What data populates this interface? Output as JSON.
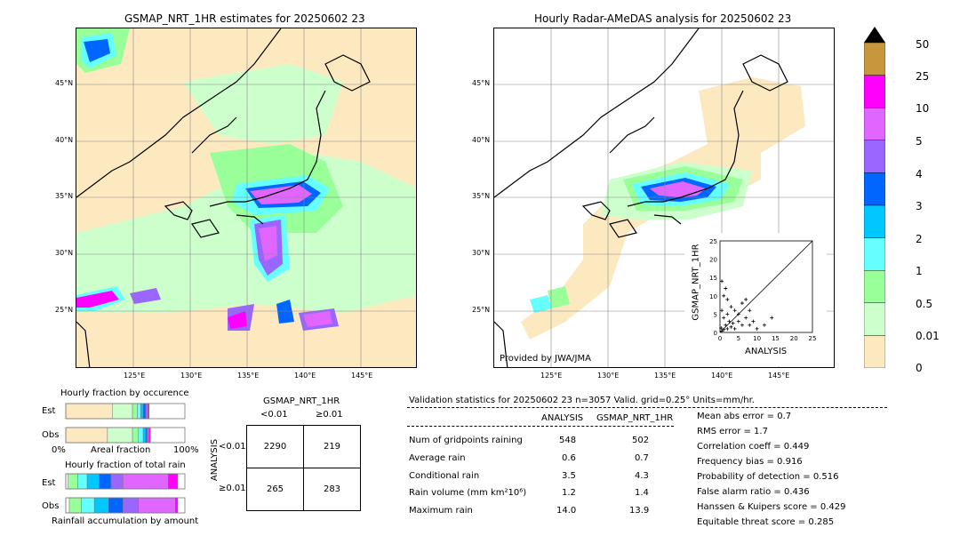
{
  "left_map": {
    "title": "GSMAP_NRT_1HR estimates for 20250602 23",
    "lat_labels": [
      "45°N",
      "40°N",
      "35°N",
      "30°N",
      "25°N"
    ],
    "lon_labels": [
      "125°E",
      "130°E",
      "135°E",
      "140°E",
      "145°E"
    ]
  },
  "right_map": {
    "title": "Hourly Radar-AMeDAS analysis for 20250602 23",
    "lat_labels": [
      "45°N",
      "40°N",
      "35°N",
      "30°N",
      "25°N"
    ],
    "lon_labels": [
      "125°E",
      "130°E",
      "135°E",
      "140°E",
      "145°E"
    ],
    "credit": "Provided by JWA/JMA"
  },
  "scatter": {
    "ylabel": "GSMAP_NRT_1HR",
    "xlabel": "ANALYSIS",
    "ticks": [
      "0",
      "5",
      "10",
      "15",
      "20",
      "25"
    ]
  },
  "colorbar": {
    "labels": [
      "50",
      "25",
      "10",
      "5",
      "4",
      "3",
      "2",
      "1",
      "0.5",
      "0.01",
      "0"
    ],
    "colors": [
      "#c8963c",
      "#ff00ff",
      "#e066ff",
      "#9966ff",
      "#0066ff",
      "#00c8ff",
      "#66ffff",
      "#99ff99",
      "#ccffcc",
      "#fde9c0"
    ]
  },
  "occurrence": {
    "title": "Hourly fraction by occurence",
    "row_est": "Est",
    "row_obs": "Obs",
    "axis_left": "0%",
    "axis_mid": "Areal fraction",
    "axis_right": "100%"
  },
  "rainfall": {
    "title": "Hourly fraction of total rain",
    "row_est": "Est",
    "row_obs": "Obs",
    "footer": "Rainfall accumulation by amount"
  },
  "contingency": {
    "header": "GSMAP_NRT_1HR",
    "col_lt": "<0.01",
    "col_ge": "≥0.01",
    "side_label": "ANALYSIS",
    "row_lt": "<0.01",
    "row_ge": "≥0.01",
    "cells": [
      "2290",
      "219",
      "265",
      "283"
    ]
  },
  "validation": {
    "header": "Validation statistics for 20250602 23  n=3057 Valid. grid=0.25°  Units=mm/hr.",
    "col_analysis": "ANALYSIS",
    "col_gsmap": "GSMAP_NRT_1HR",
    "rows": [
      {
        "label": "Num of gridpoints raining",
        "a": "548",
        "g": "502"
      },
      {
        "label": "Average rain",
        "a": "0.6",
        "g": "0.7"
      },
      {
        "label": "Conditional rain",
        "a": "3.5",
        "g": "4.3"
      },
      {
        "label": "Rain volume (mm km²10⁶)",
        "a": "1.2",
        "g": "1.4"
      },
      {
        "label": "Maximum rain",
        "a": "14.0",
        "g": "13.9"
      }
    ],
    "scores": [
      "Mean abs error =    0.7",
      "RMS error =    1.7",
      "Correlation coeff =  0.449",
      "Frequency bias =  0.916",
      "Probability of detection =  0.516",
      "False alarm ratio =  0.436",
      "Hanssen & Kuipers score =  0.429",
      "Equitable threat score =  0.285"
    ]
  },
  "chart_data": [
    {
      "type": "table",
      "title": "GSMAP_NRT_1HR",
      "columns": [
        "<0.01",
        "≥0.01"
      ],
      "rows": [
        {
          "name": "<0.01",
          "values": [
            2290,
            219
          ]
        },
        {
          "name": "≥0.01",
          "values": [
            265,
            283
          ]
        }
      ]
    },
    {
      "type": "table",
      "title": "Validation statistics for 20250602 23  n=3057 Valid. grid=0.25°  Units=mm/hr.",
      "columns": [
        "ANALYSIS",
        "GSMAP_NRT_1HR"
      ],
      "rows": [
        {
          "name": "Num of gridpoints raining",
          "values": [
            548,
            502
          ]
        },
        {
          "name": "Average rain",
          "values": [
            0.6,
            0.7
          ]
        },
        {
          "name": "Conditional rain",
          "values": [
            3.5,
            4.3
          ]
        },
        {
          "name": "Rain volume (mm km²10⁶)",
          "values": [
            1.2,
            1.4
          ]
        },
        {
          "name": "Maximum rain",
          "values": [
            14.0,
            13.9
          ]
        }
      ]
    },
    {
      "type": "scatter",
      "xlabel": "ANALYSIS",
      "ylabel": "GSMAP_NRT_1HR",
      "xlim": [
        0,
        25
      ],
      "ylim": [
        0,
        25
      ],
      "points": [
        [
          0.5,
          0.4
        ],
        [
          1,
          0.8
        ],
        [
          1.5,
          2
        ],
        [
          2,
          1
        ],
        [
          2.5,
          3
        ],
        [
          3,
          1.5
        ],
        [
          1,
          4
        ],
        [
          0.5,
          6
        ],
        [
          2,
          5
        ],
        [
          3.5,
          2.5
        ],
        [
          4,
          6
        ],
        [
          5,
          3
        ],
        [
          6,
          2
        ],
        [
          7,
          4
        ],
        [
          8,
          2
        ],
        [
          9,
          3
        ],
        [
          6,
          8
        ],
        [
          1,
          10
        ],
        [
          1.5,
          12
        ],
        [
          0.5,
          14
        ],
        [
          2,
          9
        ],
        [
          4,
          1
        ],
        [
          5,
          5
        ],
        [
          3,
          7
        ],
        [
          10,
          1
        ],
        [
          12,
          2
        ],
        [
          14,
          4
        ],
        [
          8,
          6
        ],
        [
          7,
          9
        ],
        [
          0.3,
          1.2
        ]
      ]
    },
    {
      "type": "bar",
      "title": "Hourly fraction by occurence",
      "categories": [
        "Est",
        "Obs"
      ],
      "series": [
        {
          "values": [
            0.39,
            0.35
          ]
        },
        {
          "values": [
            0.17,
            0.21
          ]
        },
        {
          "values": [
            0.04,
            0.05
          ]
        },
        {
          "values": [
            0.03,
            0.04
          ]
        },
        {
          "values": [
            0.02,
            0.02
          ]
        },
        {
          "values": [
            0.02,
            0.01
          ]
        },
        {
          "values": [
            0.01,
            0.01
          ]
        },
        {
          "values": [
            0.01,
            0.01
          ]
        },
        {
          "values": [
            0.01,
            0.01
          ]
        }
      ]
    },
    {
      "type": "bar",
      "title": "Hourly fraction of total rain",
      "categories": [
        "Est",
        "Obs"
      ],
      "series": [
        {
          "values": [
            0.02,
            0.03
          ]
        },
        {
          "values": [
            0.08,
            0.1
          ]
        },
        {
          "values": [
            0.08,
            0.11
          ]
        },
        {
          "values": [
            0.1,
            0.12
          ]
        },
        {
          "values": [
            0.1,
            0.12
          ]
        },
        {
          "values": [
            0.1,
            0.13
          ]
        },
        {
          "values": [
            0.38,
            0.31
          ]
        },
        {
          "values": [
            0.08,
            0.02
          ]
        }
      ]
    }
  ]
}
